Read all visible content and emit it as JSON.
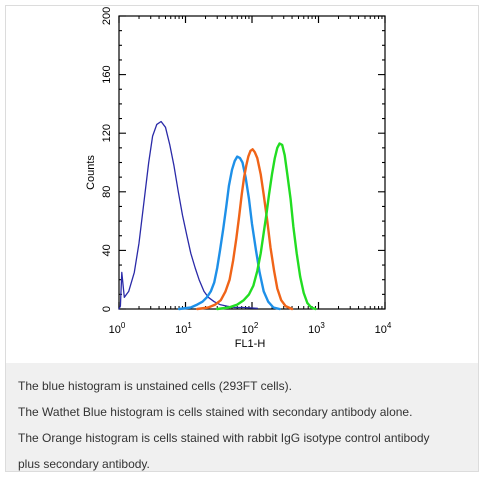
{
  "chart_data": {
    "type": "line",
    "xlabel": "FL1-H",
    "ylabel": "Counts",
    "xscale": "log",
    "xlim": [
      1,
      10000
    ],
    "ylim": [
      0,
      200
    ],
    "x_ticks": [
      {
        "base": "10",
        "exp": "0",
        "value": 1
      },
      {
        "base": "10",
        "exp": "1",
        "value": 10
      },
      {
        "base": "10",
        "exp": "2",
        "value": 100
      },
      {
        "base": "10",
        "exp": "3",
        "value": 1000
      },
      {
        "base": "10",
        "exp": "4",
        "value": 10000
      }
    ],
    "y_ticks": [
      "0",
      "40",
      "80",
      "120",
      "160",
      "200"
    ],
    "grid": false,
    "legend": "none",
    "series": [
      {
        "color": "#2a2aa8",
        "points": [
          [
            1,
            0
          ],
          [
            1.05,
            2
          ],
          [
            1.1,
            25
          ],
          [
            1.2,
            8
          ],
          [
            1.4,
            12
          ],
          [
            1.7,
            25
          ],
          [
            2,
            45
          ],
          [
            2.4,
            75
          ],
          [
            2.8,
            100
          ],
          [
            3.2,
            118
          ],
          [
            3.7,
            126
          ],
          [
            4.3,
            128
          ],
          [
            5,
            124
          ],
          [
            5.8,
            112
          ],
          [
            6.7,
            98
          ],
          [
            7.8,
            80
          ],
          [
            9,
            64
          ],
          [
            10.5,
            50
          ],
          [
            12,
            38
          ],
          [
            14,
            28
          ],
          [
            16,
            20
          ],
          [
            19,
            12
          ],
          [
            22,
            8
          ],
          [
            27,
            5
          ],
          [
            33,
            3
          ],
          [
            42,
            2
          ],
          [
            55,
            1
          ],
          [
            75,
            1
          ],
          [
            120,
            0.5
          ]
        ]
      },
      {
        "color": "#1e90e8",
        "points": [
          [
            8,
            0
          ],
          [
            12,
            1
          ],
          [
            15,
            3
          ],
          [
            18,
            5
          ],
          [
            21,
            8
          ],
          [
            24,
            12
          ],
          [
            27,
            18
          ],
          [
            30,
            28
          ],
          [
            33,
            40
          ],
          [
            37,
            55
          ],
          [
            41,
            70
          ],
          [
            45,
            84
          ],
          [
            50,
            95
          ],
          [
            55,
            101
          ],
          [
            60,
            104
          ],
          [
            66,
            103
          ],
          [
            72,
            100
          ],
          [
            80,
            90
          ],
          [
            90,
            75
          ],
          [
            100,
            58
          ],
          [
            115,
            40
          ],
          [
            130,
            25
          ],
          [
            150,
            12
          ],
          [
            175,
            5
          ],
          [
            210,
            1
          ],
          [
            260,
            0
          ]
        ]
      },
      {
        "color": "#f06418",
        "points": [
          [
            15,
            0
          ],
          [
            22,
            1
          ],
          [
            28,
            3
          ],
          [
            34,
            6
          ],
          [
            40,
            12
          ],
          [
            46,
            20
          ],
          [
            52,
            33
          ],
          [
            58,
            48
          ],
          [
            64,
            63
          ],
          [
            70,
            78
          ],
          [
            76,
            90
          ],
          [
            82,
            98
          ],
          [
            88,
            104
          ],
          [
            95,
            108
          ],
          [
            102,
            109
          ],
          [
            110,
            107
          ],
          [
            120,
            103
          ],
          [
            135,
            92
          ],
          [
            150,
            78
          ],
          [
            170,
            60
          ],
          [
            190,
            42
          ],
          [
            215,
            26
          ],
          [
            240,
            14
          ],
          [
            275,
            6
          ],
          [
            320,
            2
          ],
          [
            400,
            0
          ]
        ]
      },
      {
        "color": "#22dd22",
        "points": [
          [
            30,
            0
          ],
          [
            45,
            1
          ],
          [
            60,
            3
          ],
          [
            75,
            6
          ],
          [
            90,
            10
          ],
          [
            105,
            16
          ],
          [
            120,
            26
          ],
          [
            135,
            38
          ],
          [
            150,
            52
          ],
          [
            165,
            65
          ],
          [
            180,
            78
          ],
          [
            200,
            92
          ],
          [
            220,
            103
          ],
          [
            240,
            110
          ],
          [
            260,
            113
          ],
          [
            285,
            112
          ],
          [
            310,
            105
          ],
          [
            340,
            92
          ],
          [
            380,
            75
          ],
          [
            420,
            56
          ],
          [
            470,
            38
          ],
          [
            530,
            22
          ],
          [
            600,
            11
          ],
          [
            680,
            4
          ],
          [
            780,
            1
          ],
          [
            900,
            0
          ]
        ]
      }
    ]
  },
  "caption": {
    "lines": [
      "The blue histogram is unstained cells (293FT cells).",
      "The Wathet Blue histogram is cells stained with secondary antibody alone.",
      "The Orange histogram is cells stained with rabbit IgG isotype control antibody",
      "plus secondary antibody."
    ]
  }
}
